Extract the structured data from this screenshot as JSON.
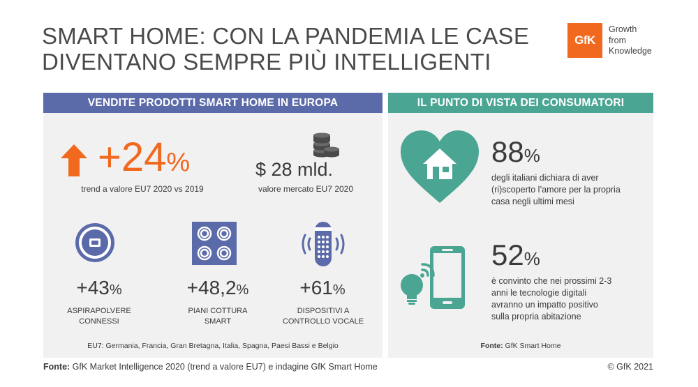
{
  "header": {
    "title_line1": "SMART HOME: CON LA PANDEMIA LE CASE",
    "title_line2": "DIVENTANO SEMPRE PIÙ INTELLIGENTI"
  },
  "logo": {
    "mark": "GfK",
    "tagline_1": "Growth",
    "tagline_2": "from",
    "tagline_3": "Knowledge",
    "color": "#f1691f"
  },
  "left_panel": {
    "heading": "VENDITE PRODOTTI SMART HOME IN EUROPA",
    "heading_color": "#5b6aa8",
    "growth": {
      "value": "+24",
      "unit": "%",
      "label": "trend a valore EU7 2020 vs 2019",
      "icon": "up-arrow-icon"
    },
    "market": {
      "value": "$ 28 mld.",
      "label": "valore mercato EU7 2020",
      "icon": "coins-icon"
    },
    "products": [
      {
        "value": "+43",
        "unit": "%",
        "caption_1": "ASPIRAPOLVERE",
        "caption_2": "CONNESSI",
        "icon": "robot-vacuum-icon"
      },
      {
        "value": "+48,2",
        "unit": "%",
        "caption_1": "PIANI COTTURA",
        "caption_2": "SMART",
        "icon": "cooktop-icon"
      },
      {
        "value": "+61",
        "unit": "%",
        "caption_1": "DISPOSITIVI A",
        "caption_2": "CONTROLLO VOCALE",
        "icon": "smart-speaker-icon"
      }
    ],
    "footnote": "EU7: Germania, Francia, Gran Bretagna, Italia, Spagna, Paesi Bassi e Belgio"
  },
  "right_panel": {
    "heading": "IL PUNTO DI VISTA DEI CONSUMATORI",
    "heading_color": "#4aa593",
    "stat1": {
      "value": "88",
      "unit": "%",
      "line_1": "degli italiani dichiara di aver",
      "line_2": "(ri)scoperto l’amore per la propria",
      "line_3": "casa negli ultimi mesi",
      "icon": "heart-home-icon"
    },
    "stat2": {
      "value": "52",
      "unit": "%",
      "line_1": "è convinto che nei prossimi 2-3",
      "line_2": "anni le tecnologie digitali",
      "line_3": "avranno un impatto positivo",
      "line_4": "sulla propria abitazione",
      "icon": "smartphone-bulb-icon"
    },
    "source_label": "Fonte:",
    "source_text": "GfK Smart Home"
  },
  "footer": {
    "source_label": "Fonte:",
    "source_text": "GfK Market Intelligence 2020 (trend a valore EU7) e indagine GfK Smart Home",
    "copyright": "© GfK 2021"
  }
}
